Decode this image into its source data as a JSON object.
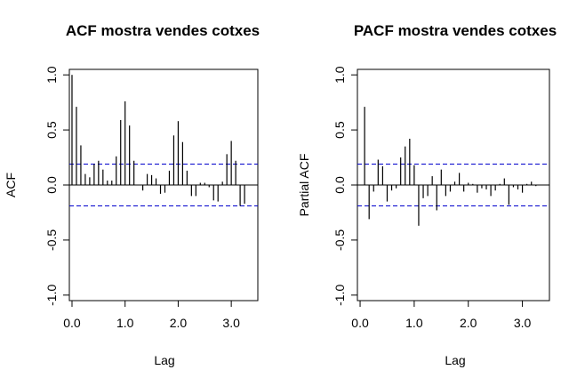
{
  "chart_data": [
    {
      "type": "bar",
      "title": "ACF mostra vendes cotxes",
      "xlabel": "Lag",
      "ylabel": "ACF",
      "xlim": [
        -0.05,
        3.5
      ],
      "ylim": [
        -1.05,
        1.05
      ],
      "xticks": [
        "0.0",
        "1.0",
        "2.0",
        "3.0"
      ],
      "yticks": [
        "-1.0",
        "-0.5",
        "0.0",
        "0.5",
        "1.0"
      ],
      "conf_band": [
        0.19,
        -0.19
      ],
      "confidence_color": "#0000cc",
      "x": [
        0,
        0.0833,
        0.1667,
        0.25,
        0.3333,
        0.4167,
        0.5,
        0.5833,
        0.6667,
        0.75,
        0.8333,
        0.9167,
        1.0,
        1.0833,
        1.1667,
        1.25,
        1.3333,
        1.4167,
        1.5,
        1.5833,
        1.6667,
        1.75,
        1.8333,
        1.9167,
        2.0,
        2.0833,
        2.1667,
        2.25,
        2.3333,
        2.4167,
        2.5,
        2.5833,
        2.6667,
        2.75,
        2.8333,
        2.9167,
        3.0,
        3.0833,
        3.1667,
        3.25
      ],
      "values": [
        1.0,
        0.71,
        0.36,
        0.1,
        0.07,
        0.19,
        0.22,
        0.14,
        0.04,
        0.04,
        0.26,
        0.59,
        0.76,
        0.54,
        0.22,
        0.0,
        -0.05,
        0.1,
        0.09,
        0.06,
        -0.08,
        -0.07,
        0.13,
        0.45,
        0.58,
        0.39,
        0.13,
        -0.1,
        -0.1,
        0.02,
        0.02,
        -0.02,
        -0.14,
        -0.15,
        0.03,
        0.28,
        0.4,
        0.22,
        -0.19,
        -0.17
      ]
    },
    {
      "type": "bar",
      "title": "PACF mostra vendes cotxes",
      "xlabel": "Lag",
      "ylabel": "Partial ACF",
      "xlim": [
        -0.05,
        3.5
      ],
      "ylim": [
        -1.05,
        1.05
      ],
      "xticks": [
        "0.0",
        "1.0",
        "2.0",
        "3.0"
      ],
      "yticks": [
        "-1.0",
        "-0.5",
        "0.0",
        "0.5",
        "1.0"
      ],
      "conf_band": [
        0.19,
        -0.19
      ],
      "confidence_color": "#0000cc",
      "x": [
        0.0833,
        0.1667,
        0.25,
        0.3333,
        0.4167,
        0.5,
        0.5833,
        0.6667,
        0.75,
        0.8333,
        0.9167,
        1.0,
        1.0833,
        1.1667,
        1.25,
        1.3333,
        1.4167,
        1.5,
        1.5833,
        1.6667,
        1.75,
        1.8333,
        1.9167,
        2.0,
        2.0833,
        2.1667,
        2.25,
        2.3333,
        2.4167,
        2.5,
        2.5833,
        2.6667,
        2.75,
        2.8333,
        2.9167,
        3.0,
        3.0833,
        3.1667,
        3.25
      ],
      "values": [
        0.71,
        -0.31,
        -0.06,
        0.23,
        0.17,
        -0.15,
        -0.05,
        -0.03,
        0.25,
        0.35,
        0.42,
        0.18,
        -0.37,
        -0.12,
        -0.1,
        0.08,
        -0.23,
        0.14,
        -0.1,
        -0.06,
        0.03,
        0.11,
        -0.06,
        0.02,
        0.01,
        -0.07,
        -0.03,
        -0.04,
        -0.1,
        -0.05,
        0.01,
        0.06,
        -0.18,
        -0.02,
        -0.04,
        -0.07,
        0.01,
        0.03,
        -0.01
      ]
    }
  ]
}
